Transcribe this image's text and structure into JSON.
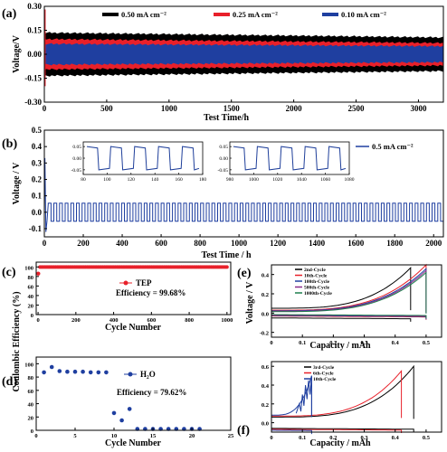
{
  "panels": {
    "a": {
      "label": "(a)"
    },
    "b": {
      "label": "(b)"
    },
    "c": {
      "label": "(c)",
      "efficiency": "Efficiency = 99.68%"
    },
    "d": {
      "label": "(d)",
      "efficiency": "Efficiency = 79.62%"
    },
    "e": {
      "label": "(e)"
    },
    "f": {
      "label": "(f)"
    },
    "cd_ylabel": "Coulombic Efficiency (%)",
    "ef_ylabel": "Voltage / V"
  },
  "colors": {
    "black": "#000000",
    "red": "#e8202a",
    "blue": "#1f3fa0",
    "inset_blue": "#1f3f9a",
    "purple": "#8a2a8a",
    "green": "#1e7f4e"
  },
  "chart_data": [
    {
      "id": "a",
      "type": "area",
      "xlabel": "Test Time/h",
      "ylabel": "Voltage/V",
      "xlim": [
        0,
        3200
      ],
      "ylim": [
        -0.3,
        0.3
      ],
      "xticks": [
        0,
        500,
        1000,
        1500,
        2000,
        2500,
        3000
      ],
      "yticks": [
        -0.3,
        -0.15,
        0.0,
        0.15,
        0.3
      ],
      "ytick_labels": [
        "-0.30",
        "-0.15",
        "0.00",
        "0.15",
        "0.30"
      ],
      "legend_position": "top",
      "series": [
        {
          "name": "0.50 mA cm⁻²",
          "color": "#000000",
          "amplitude_start": 0.13,
          "amplitude_end": 0.1
        },
        {
          "name": "0.25 mA cm⁻²",
          "color": "#e8202a",
          "amplitude_start": 0.09,
          "amplitude_end": 0.065
        },
        {
          "name": "0.10 mA cm⁻²",
          "color": "#1f3fa0",
          "amplitude_start": 0.06,
          "amplitude_end": 0.045
        }
      ],
      "initial_spikes": [
        0.28,
        -0.2
      ]
    },
    {
      "id": "b",
      "type": "line",
      "xlabel": "Test Time / h",
      "ylabel": "Voltage / V",
      "xlim": [
        0,
        2050
      ],
      "ylim": [
        -0.15,
        0.5
      ],
      "xticks": [
        0,
        200,
        400,
        600,
        800,
        1000,
        1200,
        1400,
        1600,
        1800,
        2000
      ],
      "yticks": [
        -0.1,
        0.0,
        0.1,
        0.2,
        0.3,
        0.4,
        0.5
      ],
      "ytick_labels": [
        "-0.1",
        "0.0",
        "0.1",
        "0.2",
        "0.3",
        "0.4",
        "0.5"
      ],
      "legend_position": "right",
      "series": [
        {
          "name": "0.5 mA cm⁻²",
          "color": "#1f3fa0",
          "amplitude": 0.055,
          "cycles": 70
        }
      ],
      "initial_spike": [
        0.33,
        -0.12
      ],
      "insets": [
        {
          "xlim": [
            80,
            180
          ],
          "xticks": [
            80,
            100,
            120,
            140,
            160,
            180
          ],
          "ylim": [
            -0.07,
            0.07
          ],
          "yticks": [
            -0.05,
            0.0,
            0.05
          ],
          "ytick_labels": [
            "-0.05",
            "0.00",
            "0.05"
          ],
          "amplitude": 0.05,
          "period": 20
        },
        {
          "xlim": [
            980,
            1080
          ],
          "xticks": [
            980,
            1000,
            1020,
            1040,
            1060,
            1080
          ],
          "ylim": [
            -0.07,
            0.07
          ],
          "yticks": [
            -0.05,
            0.0,
            0.05
          ],
          "ytick_labels": [
            "-0.05",
            "0.00",
            "0.05"
          ],
          "amplitude": 0.05,
          "period": 20
        }
      ]
    },
    {
      "id": "c",
      "type": "scatter",
      "xlabel": "Cycle Number",
      "ylabel": "",
      "xlim": [
        -10,
        1020
      ],
      "ylim": [
        0,
        110
      ],
      "xticks": [
        0,
        200,
        400,
        600,
        800,
        1000
      ],
      "yticks": [
        0,
        20,
        40,
        60,
        80,
        100
      ],
      "legend_position": "right",
      "series": [
        {
          "name": "TEP",
          "color": "#e8202a",
          "value": 99.68,
          "points": 1000,
          "first_value": 86
        }
      ]
    },
    {
      "id": "d",
      "type": "scatter",
      "xlabel": "Cycle Number",
      "ylabel": "",
      "xlim": [
        0,
        25
      ],
      "ylim": [
        0,
        110
      ],
      "xticks": [
        0,
        5,
        10,
        15,
        20,
        25
      ],
      "yticks": [
        0,
        20,
        40,
        60,
        80,
        100
      ],
      "legend_position": "top-right",
      "series": [
        {
          "name": "H₂O",
          "color": "#1f3fa0",
          "x": [
            1,
            2,
            3,
            4,
            5,
            6,
            7,
            8,
            9,
            10,
            11,
            12,
            13,
            14,
            15,
            16,
            17,
            18,
            19,
            20,
            21
          ],
          "y": [
            87,
            95,
            89,
            88,
            88,
            88,
            87,
            87,
            87,
            26,
            15,
            32,
            2,
            2,
            2,
            2,
            2,
            2,
            2,
            2,
            2
          ]
        }
      ]
    },
    {
      "id": "e",
      "type": "line",
      "xlabel": "Capacity / mAh",
      "ylabel": "",
      "xlim": [
        0,
        0.55
      ],
      "ylim": [
        -0.25,
        0.5
      ],
      "xticks": [
        0.0,
        0.1,
        0.2,
        0.3,
        0.4,
        0.5
      ],
      "yticks": [
        -0.2,
        0.0,
        0.2,
        0.4
      ],
      "ytick_labels": [
        "-0.2",
        "0.0",
        "0.2",
        "0.4"
      ],
      "legend_position": "top-left",
      "series": [
        {
          "name": "2nd-Cycle",
          "color": "#000000",
          "capacity": 0.45,
          "charge_end": 0.47,
          "plateau": 0.05
        },
        {
          "name": "10th-Cycle",
          "color": "#e8202a",
          "capacity": 0.5,
          "charge_end": 0.5,
          "plateau": 0.03
        },
        {
          "name": "100th-Cycle",
          "color": "#1f3fa0",
          "capacity": 0.5,
          "charge_end": 0.46,
          "plateau": 0.025
        },
        {
          "name": "500th-Cycle",
          "color": "#8a2a8a",
          "capacity": 0.5,
          "charge_end": 0.44,
          "plateau": 0.02
        },
        {
          "name": "1000th-Cycle",
          "color": "#1e7f4e",
          "capacity": 0.5,
          "charge_end": 0.42,
          "plateau": 0.015
        }
      ]
    },
    {
      "id": "f",
      "type": "line",
      "xlabel": "Capacity / mAh",
      "ylabel": "",
      "xlim": [
        0,
        0.55
      ],
      "ylim": [
        -0.1,
        0.65
      ],
      "xticks": [
        0.0,
        0.1,
        0.2,
        0.3,
        0.4,
        0.5
      ],
      "yticks": [
        0.0,
        0.2,
        0.4,
        0.6
      ],
      "ytick_labels": [
        "0.0",
        "0.2",
        "0.4",
        "0.6"
      ],
      "legend_position": "top-left",
      "series": [
        {
          "name": "3rd-Cycle",
          "color": "#000000",
          "capacity": 0.46,
          "charge_end": 0.6,
          "plateau": 0.06
        },
        {
          "name": "6th-Cycle",
          "color": "#e8202a",
          "capacity": 0.42,
          "charge_end": 0.55,
          "plateau": 0.07
        },
        {
          "name": "10th-Cycle",
          "color": "#1f3fa0",
          "capacity": 0.13,
          "charge_end": 0.5,
          "plateau": 0.08
        }
      ]
    }
  ]
}
